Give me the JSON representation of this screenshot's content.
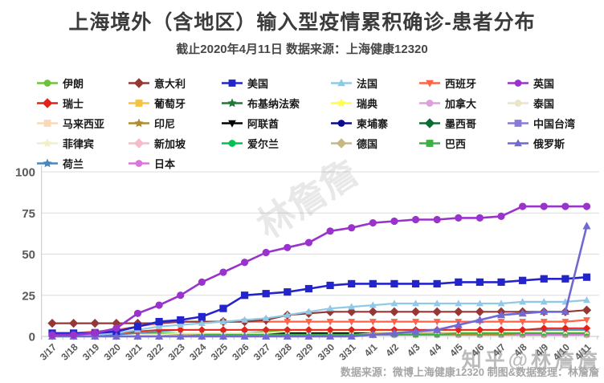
{
  "title": "上海境外（含地区）输入型疫情累积确诊-患者分布",
  "subtitle": "截止2020年4月11日 数据来源：上海健康12320",
  "footer": "数据来源：微博上海健康12320 制图&数据整理：林詹詹",
  "watermarks": {
    "diagonal": "林詹詹",
    "corner": "知乎@林詹詹"
  },
  "colors": {
    "title_text": "#3b3b3b",
    "axis_labels": "#595959",
    "gridline": "#dcdcdc",
    "axis_line": "#c6c6c6",
    "background": "#ffffff"
  },
  "chart_data": {
    "type": "line",
    "title": "上海境外（含地区）输入型疫情累积确诊-患者分布",
    "xlabel": "",
    "ylabel": "",
    "ylim": [
      0,
      100
    ],
    "yticks": [
      0,
      25,
      50,
      75,
      100
    ],
    "grid": true,
    "legend_position": "top",
    "x": [
      "3/17",
      "3/18",
      "3/19",
      "3/20",
      "3/21",
      "3/22",
      "3/23",
      "3/24",
      "3/25",
      "3/26",
      "3/27",
      "3/28",
      "3/29",
      "3/30",
      "3/31",
      "4/1",
      "4/2",
      "4/3",
      "4/4",
      "4/5",
      "4/6",
      "4/7",
      "4/8",
      "4/9",
      "4/10",
      "4/11"
    ],
    "series": [
      {
        "name": "伊朗",
        "color": "#6ec23a",
        "marker": "circle",
        "values": [
          2,
          2,
          2,
          2,
          2,
          2,
          2,
          2,
          2,
          2,
          3,
          3,
          3,
          3,
          3,
          3,
          3,
          3,
          3,
          3,
          3,
          3,
          3,
          3,
          3,
          3
        ]
      },
      {
        "name": "意大利",
        "color": "#953735",
        "marker": "diamond",
        "values": [
          8,
          8,
          8,
          8,
          8,
          8,
          9,
          9,
          9,
          9,
          10,
          13,
          14,
          15,
          15,
          15,
          15,
          15,
          15,
          15,
          15,
          15,
          15,
          15,
          15,
          16
        ]
      },
      {
        "name": "美国",
        "color": "#2424cc",
        "marker": "square",
        "values": [
          2,
          2,
          2,
          3,
          6,
          9,
          10,
          12,
          17,
          25,
          26,
          27,
          29,
          31,
          32,
          32,
          32,
          32,
          32,
          33,
          33,
          33,
          34,
          35,
          35,
          36
        ]
      },
      {
        "name": "法国",
        "color": "#8fc9e6",
        "marker": "triangle-up",
        "values": [
          1,
          1,
          1,
          2,
          4,
          6,
          7,
          8,
          9,
          10,
          11,
          13,
          15,
          17,
          18,
          19,
          20,
          20,
          20,
          20,
          20,
          20,
          21,
          21,
          21,
          22
        ]
      },
      {
        "name": "西班牙",
        "color": "#ff6347",
        "marker": "triangle-down",
        "values": [
          2,
          2,
          3,
          4,
          6,
          8,
          9,
          9,
          9,
          9,
          9,
          9,
          9,
          9,
          9,
          9,
          9,
          9,
          9,
          9,
          9,
          9,
          9,
          9,
          9,
          10
        ]
      },
      {
        "name": "英国",
        "color": "#9933cc",
        "marker": "circle",
        "values": [
          1,
          1,
          2,
          5,
          14,
          19,
          25,
          33,
          39,
          45,
          51,
          54,
          57,
          64,
          66,
          69,
          70,
          71,
          71,
          72,
          72,
          73,
          79,
          79,
          79,
          79
        ]
      },
      {
        "name": "瑞士",
        "color": "#e32219",
        "marker": "diamond",
        "values": [
          1,
          1,
          1,
          2,
          3,
          4,
          4,
          4,
          4,
          4,
          4,
          4,
          4,
          4,
          4,
          4,
          4,
          4,
          4,
          4,
          4,
          4,
          4,
          5,
          5,
          5
        ]
      },
      {
        "name": "葡萄牙",
        "color": "#f5c242",
        "marker": "square",
        "values": [
          1,
          1,
          1,
          1,
          1,
          1,
          1,
          1,
          1,
          2,
          2,
          2,
          2,
          2,
          2,
          2,
          2,
          2,
          2,
          2,
          2,
          2,
          2,
          2,
          2,
          2
        ]
      },
      {
        "name": "布基纳法索",
        "color": "#1f7a33",
        "marker": "star",
        "values": [
          0,
          0,
          0,
          0,
          0,
          1,
          1,
          1,
          1,
          1,
          1,
          1,
          1,
          1,
          1,
          1,
          1,
          1,
          1,
          1,
          1,
          1,
          1,
          1,
          1,
          1
        ]
      },
      {
        "name": "瑞典",
        "color": "#fdfd4b",
        "marker": "star",
        "values": [
          0,
          0,
          0,
          1,
          1,
          1,
          1,
          1,
          1,
          1,
          1,
          1,
          1,
          1,
          2,
          2,
          2,
          2,
          2,
          2,
          2,
          2,
          2,
          2,
          2,
          2
        ]
      },
      {
        "name": "加拿大",
        "color": "#dda0dd",
        "marker": "circle",
        "values": [
          0,
          0,
          0,
          0,
          1,
          1,
          1,
          1,
          1,
          1,
          1,
          1,
          1,
          1,
          1,
          1,
          2,
          2,
          2,
          2,
          2,
          2,
          2,
          2,
          2,
          2
        ]
      },
      {
        "name": "泰国",
        "color": "#eae4c9",
        "marker": "circle",
        "values": [
          1,
          1,
          1,
          1,
          1,
          1,
          1,
          1,
          1,
          1,
          1,
          2,
          2,
          2,
          2,
          2,
          2,
          2,
          2,
          2,
          2,
          2,
          2,
          2,
          2,
          2
        ]
      },
      {
        "name": "马来西亚",
        "color": "#fad8b8",
        "marker": "square",
        "values": [
          1,
          1,
          1,
          1,
          1,
          1,
          1,
          2,
          2,
          2,
          2,
          2,
          2,
          2,
          2,
          2,
          2,
          2,
          2,
          2,
          2,
          2,
          2,
          2,
          2,
          2
        ]
      },
      {
        "name": "印尼",
        "color": "#b08c2e",
        "marker": "star",
        "values": [
          0,
          0,
          0,
          0,
          0,
          1,
          1,
          1,
          1,
          1,
          1,
          1,
          1,
          1,
          1,
          1,
          1,
          1,
          1,
          1,
          1,
          1,
          2,
          2,
          2,
          2
        ]
      },
      {
        "name": "阿联酋",
        "color": "#000000",
        "marker": "triangle-down",
        "values": [
          0,
          0,
          0,
          0,
          0,
          0,
          0,
          1,
          2,
          2,
          2,
          2,
          2,
          2,
          2,
          2,
          2,
          2,
          2,
          2,
          2,
          2,
          2,
          2,
          2,
          2
        ]
      },
      {
        "name": "柬埔寨",
        "color": "#0b0b8f",
        "marker": "circle",
        "values": [
          0,
          0,
          0,
          0,
          0,
          0,
          1,
          1,
          1,
          1,
          1,
          1,
          1,
          1,
          1,
          1,
          1,
          1,
          1,
          1,
          1,
          1,
          1,
          1,
          1,
          1
        ]
      },
      {
        "name": "墨西哥",
        "color": "#0e6b33",
        "marker": "diamond",
        "values": [
          0,
          0,
          0,
          0,
          0,
          0,
          0,
          0,
          0,
          1,
          1,
          1,
          1,
          1,
          1,
          1,
          1,
          1,
          1,
          1,
          1,
          1,
          1,
          1,
          1,
          1
        ]
      },
      {
        "name": "中国台湾",
        "color": "#8a7ad9",
        "marker": "square",
        "values": [
          0,
          0,
          0,
          0,
          1,
          1,
          1,
          1,
          1,
          1,
          1,
          1,
          1,
          1,
          1,
          1,
          1,
          1,
          1,
          1,
          1,
          1,
          1,
          1,
          1,
          1
        ]
      },
      {
        "name": "菲律宾",
        "color": "#f4efc4",
        "marker": "star",
        "values": [
          1,
          1,
          1,
          1,
          1,
          1,
          2,
          2,
          2,
          2,
          2,
          3,
          3,
          3,
          3,
          3,
          3,
          3,
          3,
          3,
          3,
          3,
          3,
          3,
          3,
          3
        ]
      },
      {
        "name": "新加坡",
        "color": "#f9bbcb",
        "marker": "diamond",
        "values": [
          0,
          0,
          0,
          0,
          0,
          1,
          1,
          1,
          1,
          1,
          1,
          1,
          1,
          1,
          1,
          1,
          1,
          1,
          1,
          1,
          1,
          1,
          1,
          1,
          1,
          1
        ]
      },
      {
        "name": "爱尔兰",
        "color": "#00c24f",
        "marker": "circle",
        "values": [
          0,
          0,
          0,
          0,
          0,
          0,
          0,
          0,
          1,
          1,
          1,
          1,
          1,
          1,
          1,
          1,
          1,
          1,
          1,
          1,
          1,
          1,
          1,
          1,
          1,
          1
        ]
      },
      {
        "name": "德国",
        "color": "#c6b87e",
        "marker": "diamond",
        "values": [
          0,
          0,
          0,
          0,
          0,
          0,
          1,
          1,
          1,
          1,
          1,
          1,
          1,
          1,
          1,
          2,
          2,
          2,
          2,
          2,
          2,
          2,
          2,
          2,
          2,
          2
        ]
      },
      {
        "name": "巴西",
        "color": "#3cb043",
        "marker": "square",
        "values": [
          0,
          0,
          0,
          0,
          0,
          0,
          0,
          1,
          1,
          1,
          1,
          1,
          1,
          1,
          1,
          1,
          1,
          1,
          1,
          2,
          2,
          2,
          2,
          2,
          2,
          2
        ]
      },
      {
        "name": "俄罗斯",
        "color": "#7268d2",
        "marker": "triangle-up",
        "values": [
          0,
          0,
          0,
          0,
          0,
          0,
          0,
          0,
          0,
          0,
          0,
          0,
          0,
          0,
          0,
          1,
          2,
          3,
          4,
          7,
          10,
          13,
          14,
          15,
          15,
          67
        ]
      },
      {
        "name": "荷兰",
        "color": "#4a86b8",
        "marker": "star",
        "values": [
          0,
          0,
          0,
          1,
          2,
          3,
          4,
          4,
          4,
          4,
          4,
          4,
          4,
          4,
          4,
          4,
          4,
          4,
          4,
          4,
          4,
          4,
          4,
          4,
          4,
          4
        ]
      },
      {
        "name": "日本",
        "color": "#d877d8",
        "marker": "circle",
        "values": [
          0,
          0,
          0,
          0,
          0,
          0,
          0,
          0,
          1,
          1,
          1,
          1,
          1,
          1,
          1,
          1,
          1,
          1,
          1,
          1,
          1,
          1,
          1,
          1,
          1,
          1
        ]
      }
    ]
  }
}
